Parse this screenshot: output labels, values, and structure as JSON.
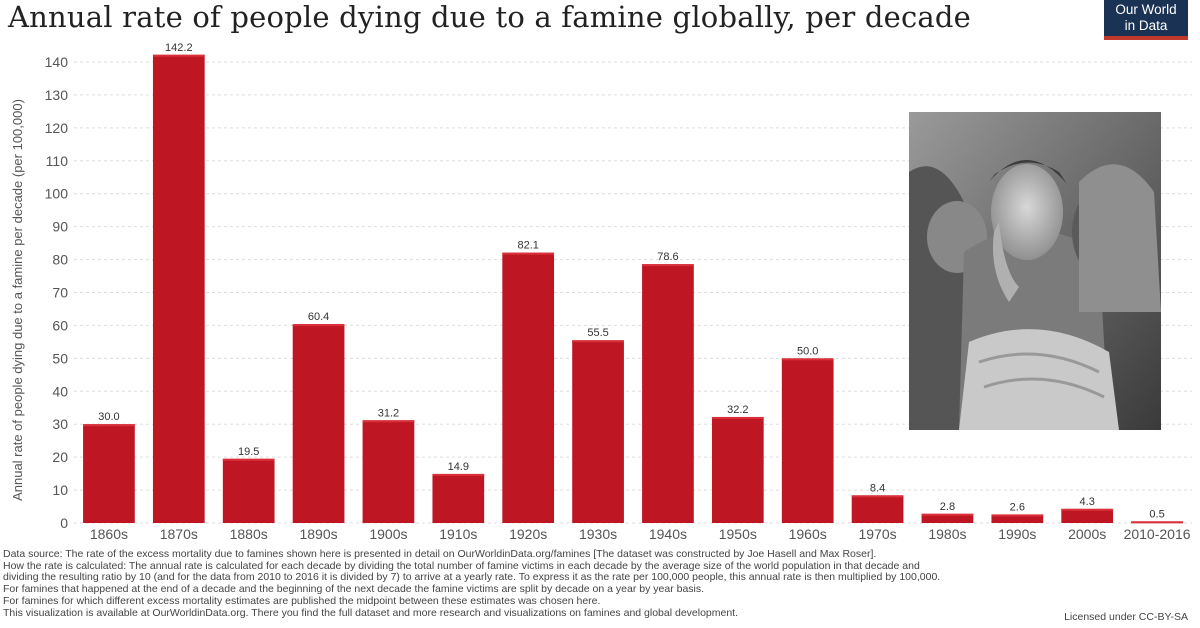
{
  "title": "Annual rate of people dying due to a famine globally, per decade",
  "logo": {
    "line1": "Our World",
    "line2": "in Data"
  },
  "colors": {
    "bar": "#be1622",
    "bar_top": "#d9303a",
    "grid": "#dddddd",
    "logo_bg": "#1a3254",
    "logo_accent": "#c0392b"
  },
  "chart_data": {
    "type": "bar",
    "title": "Annual rate of people dying due to a famine globally, per decade",
    "xlabel": "",
    "ylabel": "Annual rate of people dying due to a famine per decade (per 100,000)",
    "categories": [
      "1860s",
      "1870s",
      "1880s",
      "1890s",
      "1900s",
      "1910s",
      "1920s",
      "1930s",
      "1940s",
      "1950s",
      "1960s",
      "1970s",
      "1980s",
      "1990s",
      "2000s",
      "2010-2016"
    ],
    "values": [
      30.0,
      142.2,
      19.5,
      60.4,
      31.2,
      14.9,
      82.1,
      55.5,
      78.6,
      32.2,
      50.0,
      8.4,
      2.8,
      2.6,
      4.3,
      0.5
    ],
    "data_labels": [
      "30.0",
      "142.2",
      "19.5",
      "60.4",
      "31.2",
      "14.9",
      "82.1",
      "55.5",
      "78.6",
      "32.2",
      "50.0",
      "8.4",
      "2.8",
      "2.6",
      "4.3",
      "0.5"
    ],
    "ylim": [
      0,
      140
    ],
    "yticks": [
      0,
      10,
      20,
      30,
      40,
      50,
      60,
      70,
      80,
      90,
      100,
      110,
      120,
      130,
      140
    ],
    "grid": true
  },
  "notes": [
    "Data source: The rate of the excess mortality due to famines shown here is presented in detail on OurWorldinData.org/famines [The dataset was constructed by Joe Hasell and Max Roser].",
    "How the rate is calculated: The annual rate is calculated for each decade by dividing the total number of famine victims in each decade by the average size of the world population in that decade and",
    "dividing the resulting ratio by 10 (and for the data from 2010 to 2016 it is divided by 7) to arrive at a yearly rate. To express it as the rate per 100,000 people, this annual rate is then multiplied by 100,000.",
    "For famines that happened at the end of a decade and the beginning of the next decade the famine victims are split by decade on a year by year basis.",
    "For famines for which different excess mortality estimates are published the midpoint between these estimates was chosen here.",
    "This visualization is available at OurWorldinData.org. There you find the full dataset and more research and visualizations on famines and global development."
  ],
  "license": "Licensed under CC-BY-SA"
}
